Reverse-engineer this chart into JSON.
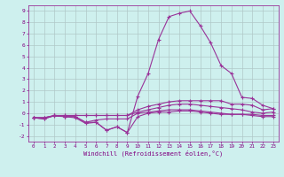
{
  "xlabel": "Windchill (Refroidissement éolien,°C)",
  "background_color": "#cef0ee",
  "grid_color": "#b0c8c8",
  "line_color": "#993399",
  "x": [
    0,
    1,
    2,
    3,
    4,
    5,
    6,
    7,
    8,
    9,
    10,
    11,
    12,
    13,
    14,
    15,
    16,
    17,
    18,
    19,
    20,
    21,
    22,
    23
  ],
  "line1": [
    -0.4,
    -0.5,
    -0.2,
    -0.2,
    -0.2,
    -0.2,
    -0.2,
    -0.2,
    -0.2,
    -0.2,
    0.3,
    0.6,
    0.8,
    1.0,
    1.1,
    1.1,
    1.1,
    1.1,
    1.1,
    0.8,
    0.8,
    0.7,
    0.3,
    0.4
  ],
  "line2": [
    -0.4,
    -0.5,
    -0.2,
    -0.2,
    -0.2,
    -0.2,
    -0.2,
    -0.2,
    -0.2,
    -0.2,
    0.1,
    0.3,
    0.5,
    0.7,
    0.8,
    0.8,
    0.7,
    0.6,
    0.5,
    0.4,
    0.3,
    0.1,
    0.0,
    0.1
  ],
  "line3": [
    -0.4,
    -0.4,
    -0.2,
    -0.3,
    -0.3,
    -0.8,
    -0.6,
    -0.5,
    -0.5,
    -0.5,
    0.0,
    0.1,
    0.2,
    0.3,
    0.3,
    0.3,
    0.2,
    0.1,
    0.0,
    -0.1,
    -0.1,
    -0.1,
    -0.2,
    -0.2
  ],
  "line4": [
    -0.4,
    -0.4,
    -0.2,
    -0.3,
    -0.4,
    -0.9,
    -0.8,
    -1.5,
    -1.2,
    -1.7,
    -0.3,
    0.0,
    0.1,
    0.1,
    0.2,
    0.2,
    0.1,
    0.0,
    -0.1,
    -0.1,
    -0.1,
    -0.2,
    -0.3,
    -0.3
  ],
  "line_peak": [
    -0.4,
    -0.4,
    -0.25,
    -0.3,
    -0.3,
    -0.8,
    -0.8,
    -1.5,
    -1.2,
    -1.7,
    1.5,
    3.5,
    6.5,
    8.5,
    8.8,
    9.0,
    7.7,
    6.2,
    4.2,
    3.5,
    1.4,
    1.3,
    0.7,
    0.4
  ],
  "xlim": [
    -0.5,
    23.5
  ],
  "ylim": [
    -2.5,
    9.5
  ],
  "yticks": [
    -2,
    -1,
    0,
    1,
    2,
    3,
    4,
    5,
    6,
    7,
    8,
    9
  ],
  "xticks": [
    0,
    1,
    2,
    3,
    4,
    5,
    6,
    7,
    8,
    9,
    10,
    11,
    12,
    13,
    14,
    15,
    16,
    17,
    18,
    19,
    20,
    21,
    22,
    23
  ]
}
